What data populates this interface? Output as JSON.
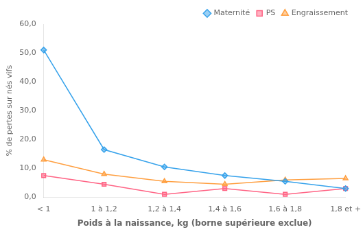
{
  "chart_data": {
    "type": "line",
    "categories": [
      "< 1",
      "1 à 1,2",
      "1,2 à 1,4",
      "1,4 à 1,6",
      "1,6 à 1,8",
      "1,8 et +"
    ],
    "series": [
      {
        "name": "Maternité",
        "marker": "diamond",
        "values": [
          51.0,
          16.5,
          10.5,
          7.5,
          5.5,
          3.0
        ]
      },
      {
        "name": "PS",
        "marker": "square",
        "values": [
          7.5,
          4.5,
          1.0,
          3.0,
          1.0,
          3.0
        ]
      },
      {
        "name": "Engraissement",
        "marker": "triangle",
        "values": [
          13.0,
          8.0,
          5.5,
          4.5,
          6.0,
          6.5
        ]
      }
    ],
    "ylim": [
      0,
      60
    ],
    "yticks": [
      {
        "value": 0,
        "label": "0,0"
      },
      {
        "value": 10,
        "label": "10,0"
      },
      {
        "value": 20,
        "label": "20,0"
      },
      {
        "value": 30,
        "label": "30,0"
      },
      {
        "value": 40,
        "label": "40,0"
      },
      {
        "value": 50,
        "label": "50,0"
      },
      {
        "value": 60,
        "label": "60,0"
      }
    ],
    "ylabel": "% de pertes sur nés vifs",
    "xlabel": "Poids à la naissance, kg (borne supérieure exclue)",
    "grid": false,
    "legend": "upper right"
  }
}
